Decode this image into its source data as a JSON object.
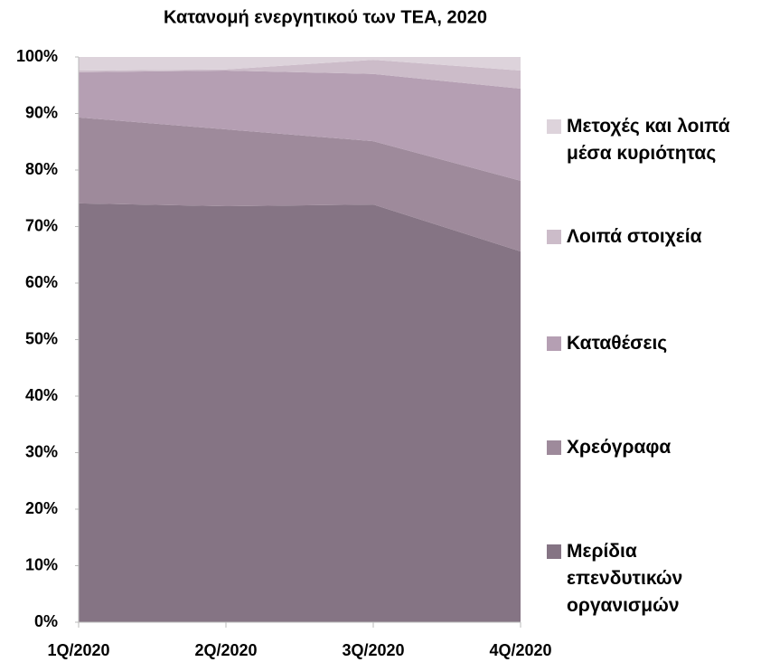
{
  "chart_data": {
    "type": "stacked_area_100",
    "title": "Κατανομή ενεργητικού των ΤΕΑ, 2020",
    "categories": [
      "1Q/2020",
      "2Q/2020",
      "3Q/2020",
      "4Q/2020"
    ],
    "series": [
      {
        "name": "Μερίδια επενδυτικών οργανισμών",
        "color": "#857484",
        "values": [
          74.1,
          73.6,
          73.9,
          65.6
        ]
      },
      {
        "name": "Χρεόγραφα",
        "color": "#9e8a9b",
        "values": [
          15.2,
          13.6,
          11.2,
          12.5
        ]
      },
      {
        "name": "Καταθέσεις",
        "color": "#b59fb3",
        "values": [
          8.0,
          10.4,
          11.9,
          16.3
        ]
      },
      {
        "name": "Λοιπά στοιχεία",
        "color": "#ccbcc9",
        "values": [
          0.3,
          0.2,
          2.5,
          3.2
        ]
      },
      {
        "name": "Μετοχές και λοιπά μέσα κυριότητας",
        "color": "#ddd3db",
        "values": [
          2.4,
          2.2,
          0.5,
          2.4
        ]
      }
    ],
    "ylim": [
      0,
      100
    ],
    "yticks": [
      {
        "value": 0,
        "label": "0%"
      },
      {
        "value": 10,
        "label": "10%"
      },
      {
        "value": 20,
        "label": "20%"
      },
      {
        "value": 30,
        "label": "30%"
      },
      {
        "value": 40,
        "label": "40%"
      },
      {
        "value": 50,
        "label": "50%"
      },
      {
        "value": 60,
        "label": "60%"
      },
      {
        "value": 70,
        "label": "70%"
      },
      {
        "value": 80,
        "label": "80%"
      },
      {
        "value": 90,
        "label": "90%"
      },
      {
        "value": 100,
        "label": "100%"
      }
    ],
    "legend": "right"
  }
}
